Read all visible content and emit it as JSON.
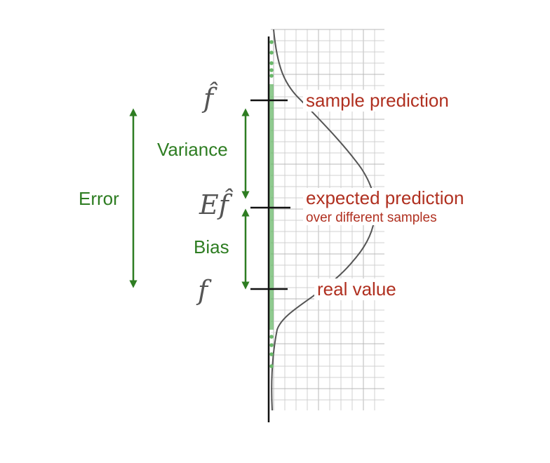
{
  "symbols": {
    "f_hat": "f̂",
    "expected_f_hat": "Ef̂",
    "f": "f"
  },
  "labels": {
    "error": "Error",
    "variance": "Variance",
    "bias": "Bias",
    "sample_prediction": "sample prediction",
    "expected_prediction": "expected prediction",
    "expected_prediction_sub": "over different samples",
    "real_value": "real value"
  },
  "colors": {
    "arrow_green": "#2e7d22",
    "label_red": "#b03020",
    "sample_dots": "#6ab86a",
    "curve": "#555555",
    "grid": "#d0d0d0"
  }
}
